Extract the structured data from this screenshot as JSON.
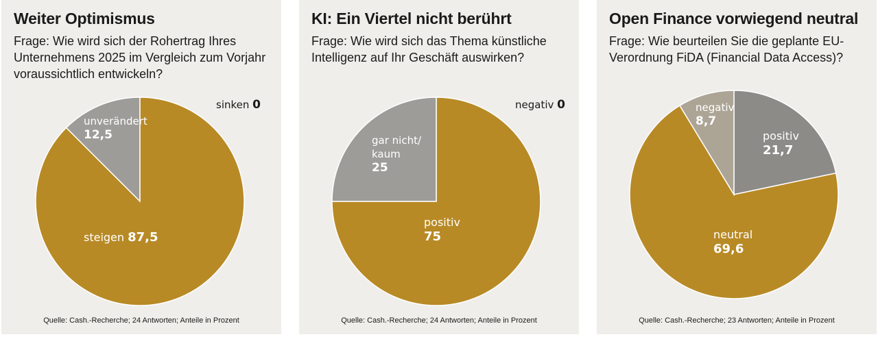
{
  "colors": {
    "gold": "#b88a26",
    "gray_dark": "#8c8b88",
    "gray_mid": "#9d9c99",
    "beige": "#aca596",
    "panel_bg": "#efeeea"
  },
  "panels": [
    {
      "title": "Weiter Optimismus",
      "question": "Frage: Wie wird sich der Rohertrag Ihres Unternehmens 2025 im Vergleich zum Vorjahr voraussichtlich entwickeln?",
      "source": "Quelle: Cash.-Recherche; 24 Antworten; Anteile in Prozent"
    },
    {
      "title": "KI: Ein Viertel nicht berührt",
      "question": "Frage: Wie wird sich das Thema künstliche Intelligenz auf Ihr Geschäft auswirken?",
      "source": "Quelle: Cash.-Recherche; 24 Antworten; Anteile in Prozent"
    },
    {
      "title": "Open Finance vorwiegend neutral",
      "question": "Frage: Wie beurteilen Sie die geplante EU-Verordnung FiDA (Financial Data Access)?",
      "source": "Quelle: Cash.-Recherche; 23 Antworten; Anteile in Prozent"
    }
  ],
  "chart_data": [
    {
      "type": "pie",
      "title": "Weiter Optimismus",
      "slices": [
        {
          "label": "steigen",
          "value": 87.5,
          "display": "87,5",
          "color": "#b88a26"
        },
        {
          "label": "unverändert",
          "value": 12.5,
          "display": "12,5",
          "color": "#9d9c99"
        },
        {
          "label": "sinken",
          "value": 0,
          "display": "0",
          "color": "#9d9c99"
        }
      ]
    },
    {
      "type": "pie",
      "title": "KI: Ein Viertel nicht berührt",
      "slices": [
        {
          "label": "positiv",
          "value": 75,
          "display": "75",
          "color": "#b88a26"
        },
        {
          "label": "gar nicht/ kaum",
          "value": 25,
          "display": "25",
          "color": "#9d9c99"
        },
        {
          "label": "negativ",
          "value": 0,
          "display": "0",
          "color": "#9d9c99"
        }
      ]
    },
    {
      "type": "pie",
      "title": "Open Finance vorwiegend neutral",
      "slices": [
        {
          "label": "positiv",
          "value": 21.7,
          "display": "21,7",
          "color": "#8c8b88"
        },
        {
          "label": "neutral",
          "value": 69.6,
          "display": "69,6",
          "color": "#b88a26"
        },
        {
          "label": "negativ",
          "value": 8.7,
          "display": "8,7",
          "color": "#aca596"
        }
      ]
    }
  ]
}
